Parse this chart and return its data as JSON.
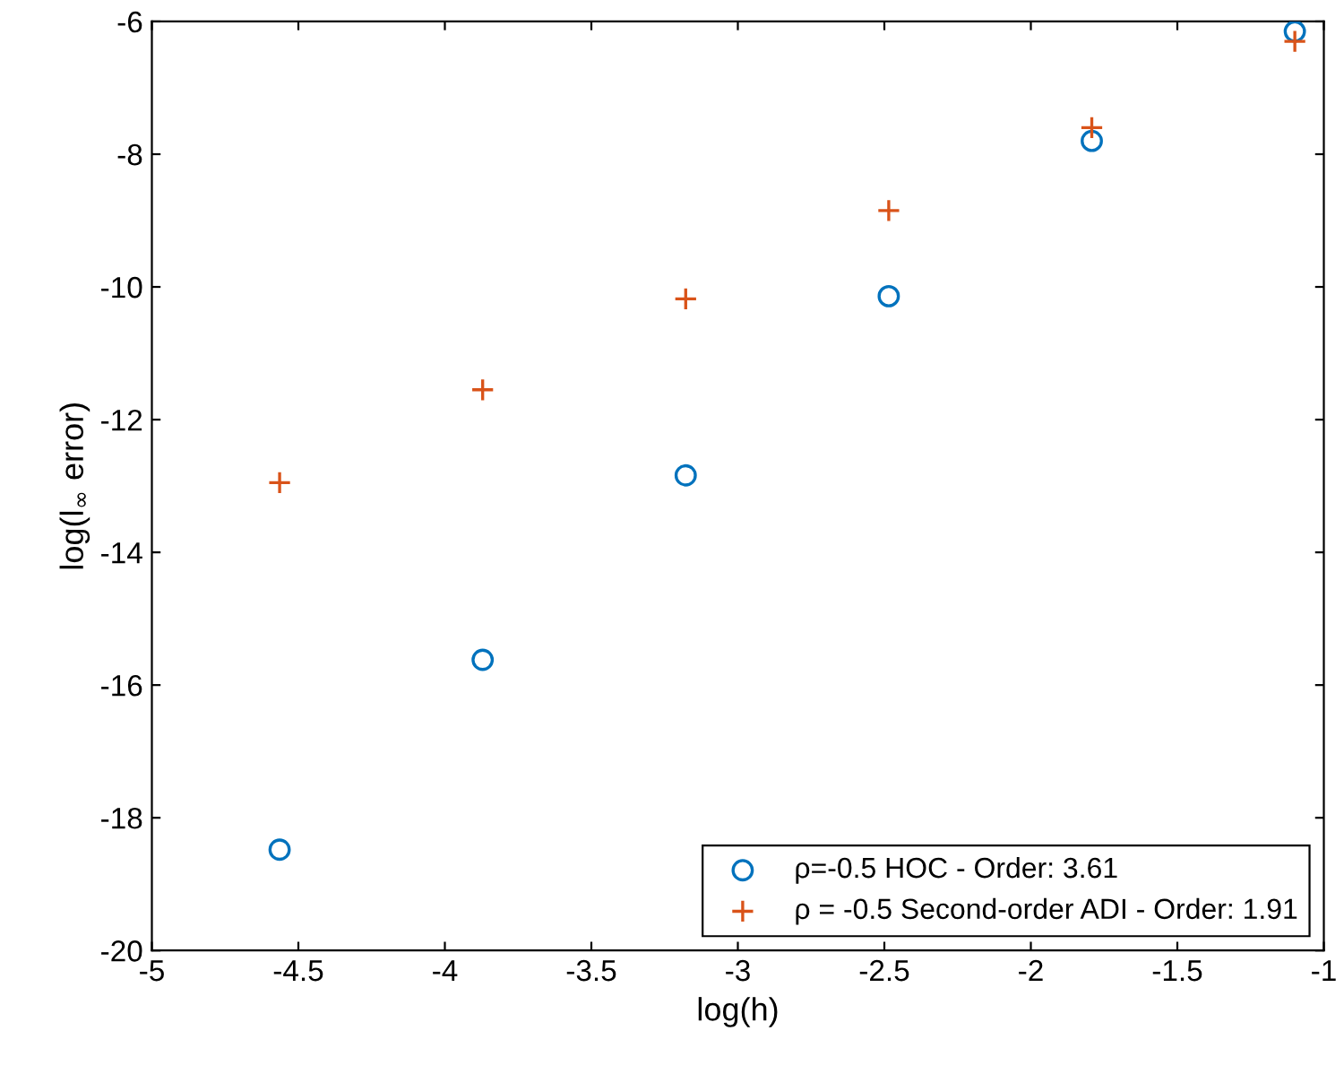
{
  "chart_data": {
    "type": "scatter",
    "xlabel": "log(h)",
    "ylabel": "log(l$_{∞}$ error)",
    "xlim": [
      -5,
      -1
    ],
    "xticks": [
      -5,
      -4.5,
      -4,
      -3.5,
      -3,
      -2.5,
      -2,
      -1.5,
      -1
    ],
    "ylim": [
      -20,
      -6
    ],
    "yticks": [
      -20,
      -18,
      -16,
      -14,
      -12,
      -10,
      -8,
      -6
    ],
    "grid": false,
    "legend": "bottom right",
    "series": [
      {
        "name": "ρ=-0.5 HOC - Order: 3.61",
        "color": "#0072bd",
        "marker": "circle",
        "x": [
          -4.564,
          -3.871,
          -3.178,
          -2.485,
          -1.792,
          -1.099
        ],
        "values": [
          -18.48,
          -15.62,
          -12.84,
          -10.14,
          -7.8,
          -6.15
        ]
      },
      {
        "name": "ρ = -0.5 Second-order ADI - Order: 1.91",
        "color": "#d95319",
        "marker": "cross",
        "x": [
          -4.564,
          -3.871,
          -3.178,
          -2.485,
          -1.792,
          -1.099
        ],
        "values": [
          -12.95,
          -11.55,
          -10.18,
          -8.85,
          -7.6,
          -6.3
        ]
      }
    ]
  }
}
